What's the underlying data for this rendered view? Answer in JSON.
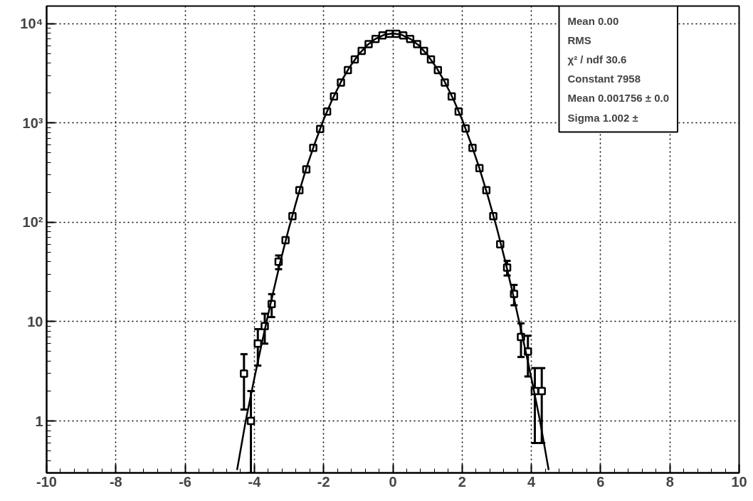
{
  "chart_data": {
    "type": "scatter",
    "grid": true,
    "log": "y",
    "xlim": [
      -10,
      10
    ],
    "xticks": [
      -10,
      -8,
      -6,
      -4,
      -2,
      0,
      2,
      4,
      6,
      8,
      10
    ],
    "ylim": [
      0.3,
      15000
    ],
    "yticks": [
      1,
      10,
      {
        "value": 100,
        "label": "10²"
      },
      {
        "value": 1000,
        "label": "10³"
      },
      {
        "value": 10000,
        "label": "10⁴"
      }
    ],
    "series": [
      {
        "marker": "square",
        "color": "#000000",
        "x": [
          -4.3,
          -4.1,
          -3.9,
          -3.7,
          -3.5,
          -3.3,
          -3.1,
          -2.9,
          -2.7,
          -2.5,
          -2.3,
          -2.1,
          -1.9,
          -1.7,
          -1.5,
          -1.3,
          -1.1,
          -0.9,
          -0.7,
          -0.5,
          -0.3,
          -0.1,
          0.1,
          0.3,
          0.5,
          0.7,
          0.9,
          1.1,
          1.3,
          1.5,
          1.7,
          1.9,
          2.1,
          2.3,
          2.5,
          2.7,
          2.9,
          3.1,
          3.3,
          3.5,
          3.7,
          3.9,
          4.1,
          4.3
        ],
        "values": [
          3,
          1,
          6,
          9,
          15,
          40,
          66,
          115,
          210,
          340,
          560,
          870,
          1300,
          1850,
          2550,
          3400,
          4350,
          5300,
          6200,
          7000,
          7600,
          7900,
          7900,
          7600,
          7000,
          6200,
          5300,
          4350,
          3400,
          2550,
          1850,
          1300,
          880,
          560,
          350,
          210,
          115,
          60,
          35,
          19,
          7,
          5,
          2,
          2
        ],
        "errors": [
          [
            1.3,
            4.7
          ],
          [
            0.3,
            2
          ],
          2.4,
          3,
          3.9,
          6.3,
          null,
          null,
          null,
          null,
          null,
          null,
          null,
          null,
          null,
          null,
          null,
          null,
          null,
          null,
          null,
          null,
          null,
          null,
          null,
          null,
          null,
          null,
          null,
          null,
          null,
          null,
          null,
          null,
          null,
          null,
          null,
          null,
          5.9,
          4.4,
          2.6,
          2.2,
          [
            0.6,
            3.4
          ],
          [
            0.6,
            3.4
          ]
        ]
      },
      {
        "type": "line",
        "color": "#000000",
        "x": [
          -4.5,
          -4.25,
          -4,
          -3.75,
          -3.5,
          -3.25,
          -3,
          -2.75,
          -2.5,
          -2.25,
          -2,
          -1.75,
          -1.5,
          -1.25,
          -1,
          -0.75,
          -0.5,
          -0.25,
          0,
          0.25,
          0.5,
          0.75,
          1,
          1.25,
          1.5,
          1.75,
          2,
          2.25,
          2.5,
          2.75,
          3,
          3.25,
          3.5,
          3.75,
          4,
          4.25,
          4.5
        ],
        "values": [
          0.32,
          1.0,
          2.7,
          6.9,
          17,
          40,
          88,
          180,
          350,
          630,
          1080,
          1720,
          2580,
          3640,
          4830,
          6030,
          7020,
          7720,
          7958,
          7720,
          7020,
          6030,
          4830,
          3640,
          2580,
          1720,
          1080,
          630,
          350,
          180,
          88,
          40,
          17,
          6.9,
          2.7,
          1.0,
          0.32
        ]
      }
    ],
    "annotations": [
      "Mean 0.00",
      "RMS",
      "χ² / ndf 30.6",
      "Constant 7958",
      "Mean 0.001756 ± 0.0",
      "Sigma 1.002 ±"
    ]
  }
}
